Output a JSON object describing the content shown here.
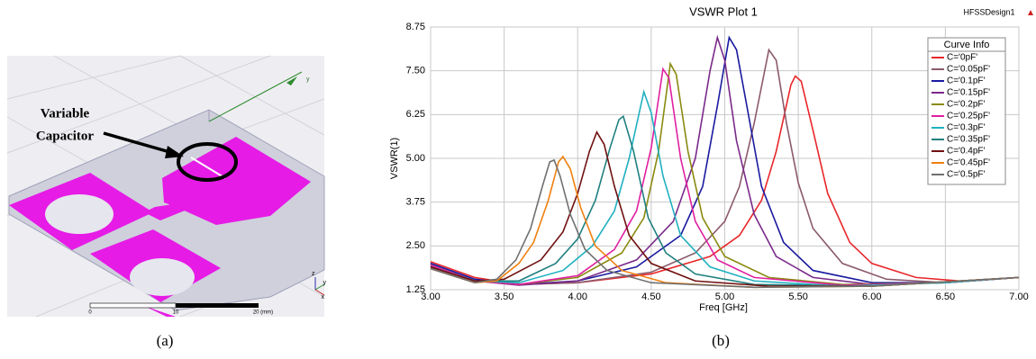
{
  "panel_a": {
    "annotation": [
      "Variable",
      "Capacitor"
    ],
    "scale_labels": [
      "0",
      "10",
      "20 (mm)"
    ],
    "triad_labels": [
      "y",
      "z",
      "y",
      "x"
    ]
  },
  "captions": [
    "(a)",
    "(b)"
  ],
  "chart_data": {
    "type": "line",
    "title": "VSWR Plot 1",
    "design_label": "HFSSDesign1",
    "x_label": "Freq [GHz]",
    "y_label": "VSWR(1)",
    "legend_title": "Curve Info",
    "legend": "upper right",
    "grid": true,
    "xlim": [
      3,
      7
    ],
    "ylim": [
      1.25,
      8.75
    ],
    "xticks": [
      {
        "value": 3,
        "label": "3.00"
      },
      {
        "value": 3.5,
        "label": "3.50"
      },
      {
        "value": 4,
        "label": "4.00"
      },
      {
        "value": 4.5,
        "label": "4.50"
      },
      {
        "value": 5,
        "label": "5.00"
      },
      {
        "value": 5.5,
        "label": "5.50"
      },
      {
        "value": 6,
        "label": "6.00"
      },
      {
        "value": 6.5,
        "label": "6.50"
      },
      {
        "value": 7,
        "label": "7.00"
      }
    ],
    "yticks": [
      1.25,
      {
        "value": 2.5,
        "label": "2.50"
      },
      3.75,
      {
        "value": 5,
        "label": "5.00"
      },
      6.25,
      {
        "value": 7.5,
        "label": "7.50"
      },
      8.75
    ],
    "series": [
      {
        "name": "C='0pF'",
        "color": "#e8262a",
        "x": [
          3.0,
          3.3,
          3.6,
          4.0,
          4.5,
          4.9,
          5.1,
          5.25,
          5.35,
          5.45,
          5.48,
          5.52,
          5.6,
          5.7,
          5.85,
          6.0,
          6.3,
          6.6,
          7.0
        ],
        "values": [
          2.05,
          1.6,
          1.4,
          1.45,
          1.7,
          2.2,
          2.8,
          3.8,
          5.2,
          7.1,
          7.35,
          7.2,
          5.8,
          4.0,
          2.6,
          2.0,
          1.6,
          1.5,
          1.6
        ]
      },
      {
        "name": "C='0.05pF'",
        "color": "#8b5a6b",
        "x": [
          3.0,
          3.3,
          3.6,
          4.0,
          4.5,
          4.8,
          5.0,
          5.1,
          5.2,
          5.3,
          5.35,
          5.42,
          5.5,
          5.6,
          5.8,
          6.1,
          6.5,
          7.0
        ],
        "values": [
          2.0,
          1.55,
          1.4,
          1.45,
          1.75,
          2.3,
          3.2,
          4.2,
          6.0,
          8.1,
          7.8,
          6.0,
          4.3,
          3.0,
          2.0,
          1.55,
          1.45,
          1.6
        ]
      },
      {
        "name": "C='0.1pF'",
        "color": "#1a1aa0",
        "x": [
          3.0,
          3.3,
          3.6,
          4.0,
          4.4,
          4.7,
          4.85,
          4.95,
          5.03,
          5.08,
          5.15,
          5.25,
          5.4,
          5.6,
          6.0,
          6.5,
          7.0
        ],
        "values": [
          2.0,
          1.55,
          1.4,
          1.5,
          1.9,
          2.8,
          4.2,
          6.5,
          8.45,
          8.1,
          6.5,
          4.2,
          2.6,
          1.8,
          1.45,
          1.45,
          1.6
        ]
      },
      {
        "name": "C='0.15pF'",
        "color": "#7a2a8a",
        "x": [
          3.0,
          3.3,
          3.6,
          4.0,
          4.4,
          4.65,
          4.8,
          4.9,
          4.95,
          5.0,
          5.08,
          5.2,
          5.35,
          5.6,
          6.0,
          6.5,
          7.0
        ],
        "values": [
          1.95,
          1.5,
          1.38,
          1.5,
          2.1,
          3.2,
          5.0,
          7.5,
          8.45,
          7.8,
          5.5,
          3.4,
          2.2,
          1.6,
          1.4,
          1.45,
          1.6
        ]
      },
      {
        "name": "C='0.2pF'",
        "color": "#8a8a10",
        "x": [
          3.0,
          3.3,
          3.6,
          4.0,
          4.3,
          4.45,
          4.55,
          4.63,
          4.67,
          4.75,
          4.85,
          5.0,
          5.3,
          5.8,
          6.5,
          7.0
        ],
        "values": [
          1.95,
          1.5,
          1.4,
          1.6,
          2.3,
          3.3,
          5.2,
          7.7,
          7.4,
          5.2,
          3.3,
          2.2,
          1.6,
          1.4,
          1.45,
          1.6
        ]
      },
      {
        "name": "C='0.25pF'",
        "color": "#e020a0",
        "x": [
          3.0,
          3.3,
          3.6,
          4.0,
          4.25,
          4.4,
          4.5,
          4.58,
          4.62,
          4.7,
          4.8,
          4.95,
          5.2,
          5.8,
          6.5,
          7.0
        ],
        "values": [
          1.95,
          1.5,
          1.4,
          1.65,
          2.4,
          3.5,
          5.3,
          7.55,
          7.3,
          5.0,
          3.2,
          2.1,
          1.6,
          1.38,
          1.45,
          1.6
        ]
      },
      {
        "name": "C='0.3pF'",
        "color": "#20b0c0",
        "x": [
          3.0,
          3.3,
          3.6,
          3.9,
          4.1,
          4.25,
          4.35,
          4.45,
          4.5,
          4.58,
          4.7,
          4.9,
          5.2,
          5.8,
          6.5,
          7.0
        ],
        "values": [
          1.9,
          1.5,
          1.45,
          1.8,
          2.5,
          3.5,
          5.0,
          6.9,
          6.3,
          4.5,
          2.8,
          1.9,
          1.5,
          1.35,
          1.45,
          1.6
        ]
      },
      {
        "name": "C='0.35pF'",
        "color": "#208080",
        "x": [
          3.0,
          3.3,
          3.6,
          3.85,
          4.0,
          4.12,
          4.22,
          4.28,
          4.31,
          4.38,
          4.48,
          4.6,
          4.8,
          5.2,
          6.0,
          7.0
        ],
        "values": [
          1.9,
          1.5,
          1.5,
          2.0,
          2.7,
          3.8,
          5.3,
          6.1,
          6.2,
          5.2,
          3.3,
          2.3,
          1.7,
          1.4,
          1.35,
          1.6
        ]
      },
      {
        "name": "C='0.4pF'",
        "color": "#701010",
        "x": [
          3.0,
          3.3,
          3.5,
          3.75,
          3.9,
          4.0,
          4.08,
          4.13,
          4.18,
          4.25,
          4.35,
          4.5,
          4.8,
          5.3,
          6.0,
          7.0
        ],
        "values": [
          1.9,
          1.5,
          1.55,
          2.1,
          2.9,
          4.0,
          5.2,
          5.75,
          5.4,
          4.2,
          2.8,
          2.0,
          1.5,
          1.35,
          1.35,
          1.6
        ]
      },
      {
        "name": "C='0.45pF'",
        "color": "#f08010",
        "x": [
          3.0,
          3.3,
          3.45,
          3.6,
          3.7,
          3.8,
          3.87,
          3.9,
          3.95,
          4.02,
          4.12,
          4.3,
          4.6,
          5.2,
          6.0,
          7.0
        ],
        "values": [
          1.85,
          1.45,
          1.5,
          2.0,
          2.6,
          3.8,
          4.9,
          5.05,
          4.7,
          3.6,
          2.5,
          1.8,
          1.45,
          1.32,
          1.35,
          1.6
        ]
      },
      {
        "name": "C='0.5pF'",
        "color": "#707070",
        "x": [
          3.0,
          3.3,
          3.45,
          3.58,
          3.68,
          3.76,
          3.81,
          3.84,
          3.88,
          3.95,
          4.05,
          4.2,
          4.5,
          5.2,
          6.0,
          7.0
        ],
        "values": [
          1.85,
          1.45,
          1.55,
          2.1,
          3.0,
          4.2,
          4.9,
          4.95,
          4.5,
          3.4,
          2.4,
          1.8,
          1.45,
          1.32,
          1.35,
          1.6
        ]
      }
    ]
  }
}
